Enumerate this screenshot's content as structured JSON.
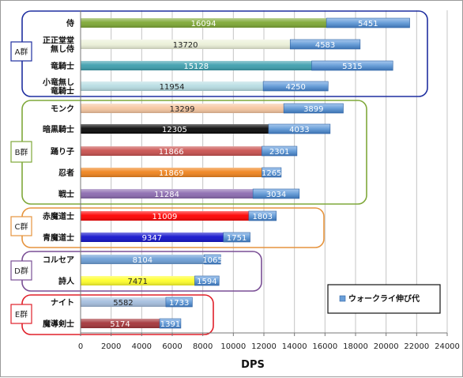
{
  "chart_data": {
    "type": "bar",
    "orientation": "horizontal",
    "stacked": true,
    "xlabel": "DPS",
    "xlim": [
      0,
      24000
    ],
    "xticks": [
      0,
      2000,
      4000,
      6000,
      8000,
      10000,
      12000,
      14000,
      16000,
      18000,
      20000,
      22000,
      24000
    ],
    "grid": true,
    "legend_position": "right",
    "legend": [
      {
        "label": "ウォークライ伸び代",
        "color": "#6a9fd8"
      }
    ],
    "groups": [
      {
        "label": "A群",
        "color": "#1f2fa0",
        "categories": [
          "侍",
          "正正堂堂\n無し侍",
          "竜騎士",
          "小竜無し\n竜騎士"
        ]
      },
      {
        "label": "B群",
        "color": "#7fa83a",
        "categories": [
          "モンク",
          "暗黒騎士",
          "踊り子",
          "忍者",
          "戦士"
        ]
      },
      {
        "label": "C群",
        "color": "#e6943e",
        "categories": [
          "赤魔道士",
          "青魔道士"
        ]
      },
      {
        "label": "D群",
        "color": "#7a4f95",
        "categories": [
          "コルセア",
          "詩人"
        ]
      },
      {
        "label": "E群",
        "color": "#e0202a",
        "categories": [
          "ナイト",
          "魔導剣士"
        ]
      }
    ],
    "categories": [
      "侍",
      "正正堂堂\n無し侍",
      "竜騎士",
      "小竜無し\n竜騎士",
      "モンク",
      "暗黒騎士",
      "踊り子",
      "忍者",
      "戦士",
      "赤魔道士",
      "青魔道士",
      "コルセア",
      "詩人",
      "ナイト",
      "魔導剣士"
    ],
    "series": [
      {
        "role": "base",
        "values": [
          16094,
          13720,
          15128,
          11954,
          13299,
          12305,
          11866,
          11869,
          11284,
          11009,
          9347,
          8104,
          7471,
          5582,
          5174
        ]
      },
      {
        "name": "ウォークライ伸び代",
        "values": [
          5451,
          4583,
          5315,
          4250,
          3899,
          4033,
          2301,
          1265,
          3034,
          1803,
          1751,
          1065,
          1594,
          1733,
          1391
        ]
      }
    ],
    "base_colors": [
      "#7ea835",
      "#ebf0d8",
      "#3e9fae",
      "#b8dde3",
      "#f6c6a0",
      "#0a0a0a",
      "#c9514f",
      "#f0841e",
      "#8c6bb0",
      "#ff0000",
      "#1414cc",
      "#6d9fd6",
      "#ffff2a",
      "#a5bede",
      "#a4353a"
    ],
    "base_label_colors": [
      "#ffffff",
      "#222222",
      "#ffffff",
      "#222222",
      "#222222",
      "#ffffff",
      "#ffffff",
      "#ffffff",
      "#ffffff",
      "#ffffff",
      "#ffffff",
      "#ffffff",
      "#222222",
      "#222222",
      "#ffffff"
    ],
    "extra_color": "#6a9fd8"
  }
}
